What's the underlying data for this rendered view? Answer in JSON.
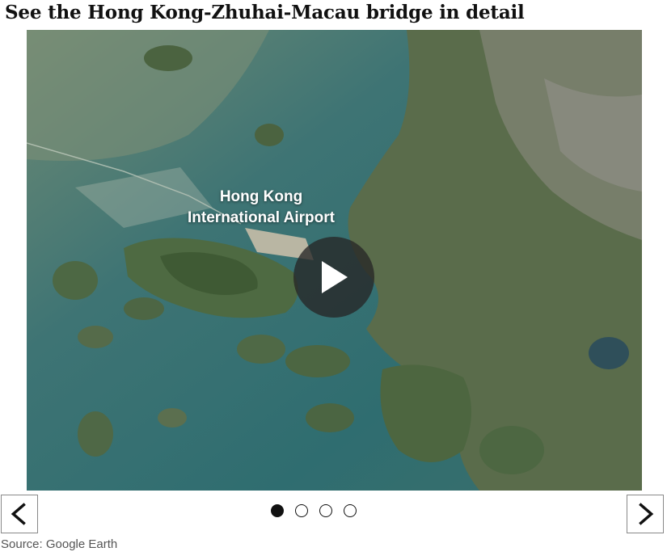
{
  "title": "See the Hong Kong-Zhuhai-Macau bridge in detail",
  "slideshow": {
    "image_label_lines": [
      "Hong Kong",
      "International Airport"
    ],
    "play_icon": "play-icon",
    "nav": {
      "prev_icon": "chevron-left-icon",
      "next_icon": "chevron-right-icon"
    },
    "slides_total": 4,
    "active_slide": 1
  },
  "source": "Source: Google Earth",
  "colors": {
    "dot_active": "#111111",
    "overlay": "#262626"
  }
}
